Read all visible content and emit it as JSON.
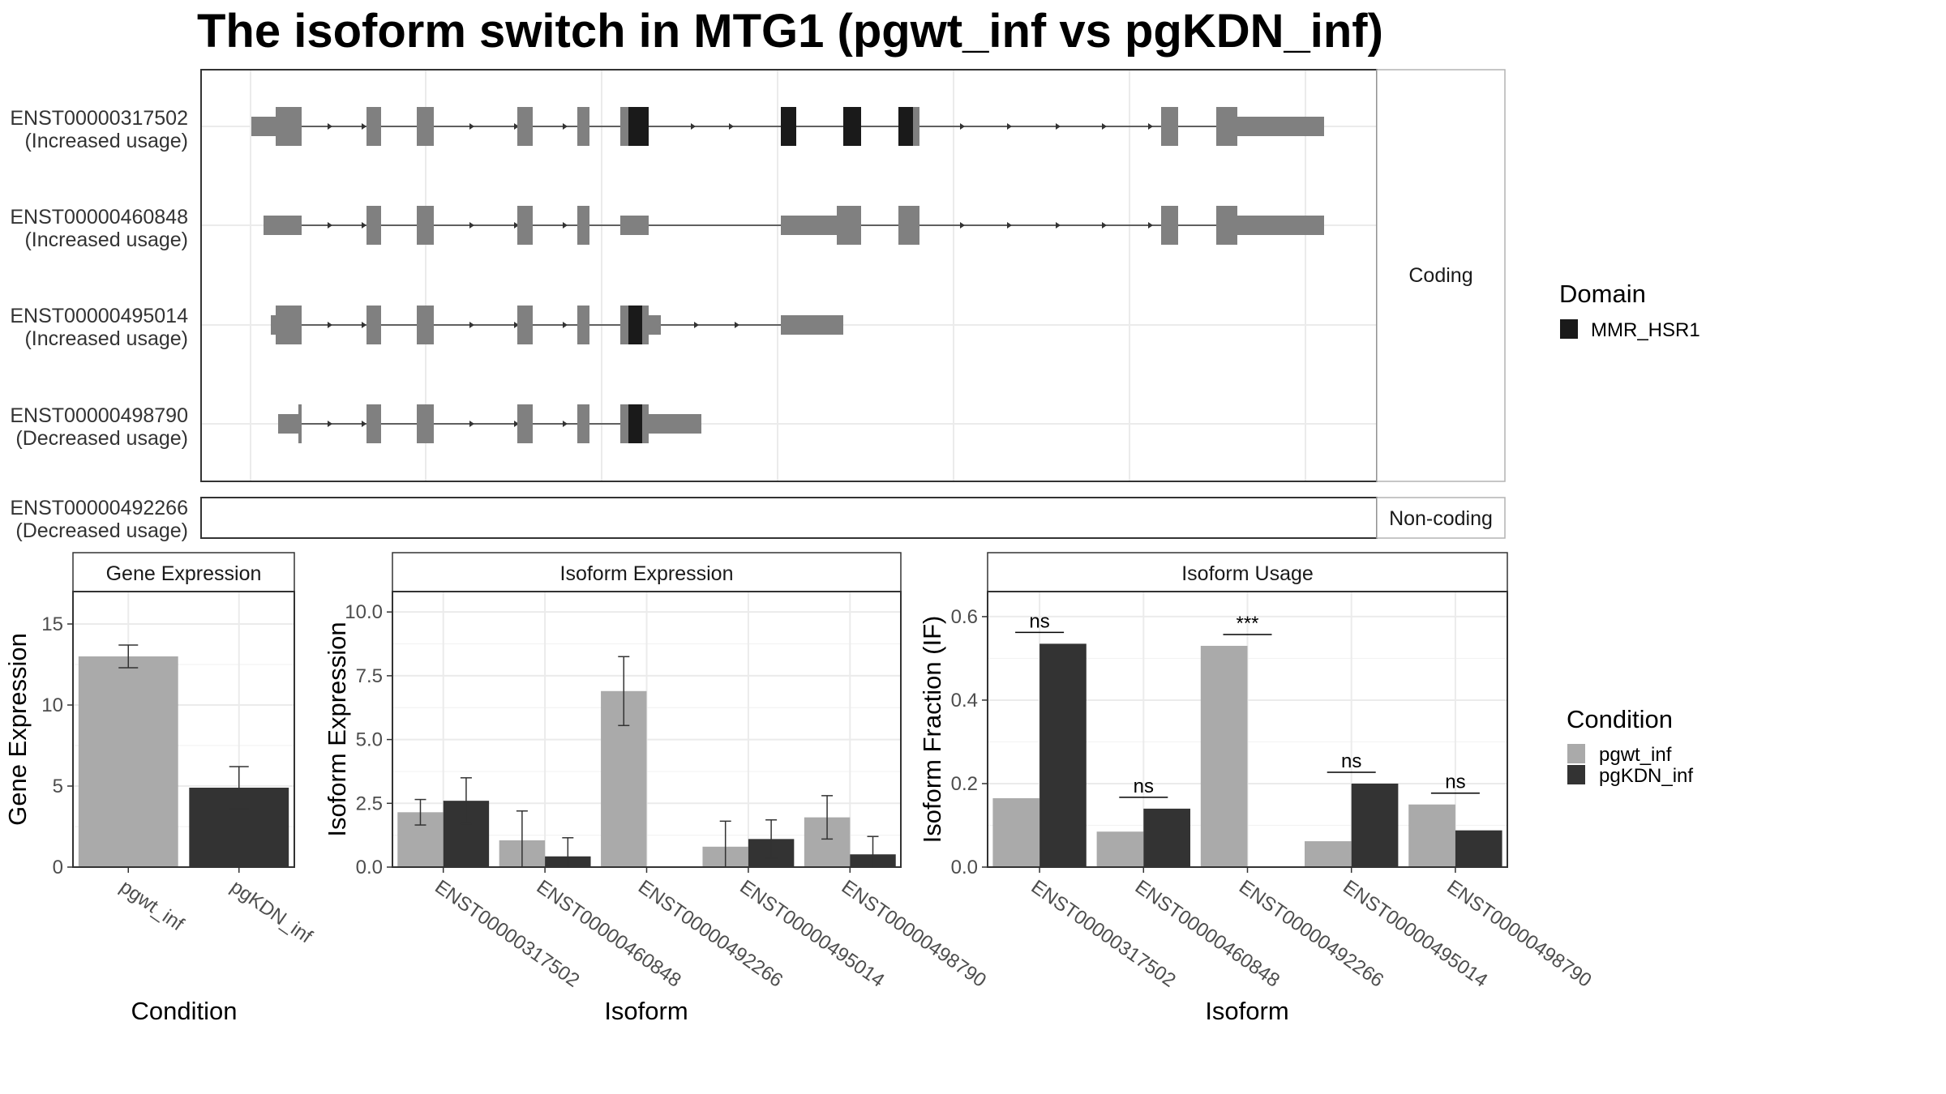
{
  "title": "The isoform switch in MTG1 (pgwt_inf vs pgKDN_inf)",
  "colors": {
    "exon": "#808080",
    "domain": "#1a1a1a",
    "cond1": "#aaaaaa",
    "cond2": "#333333",
    "grid": "#ebebeb",
    "frame": "#333333"
  },
  "structure": {
    "coding_label": "Coding",
    "noncoding_label": "Non-coding",
    "coding_transcripts": [
      {
        "id": "ENST00000317502",
        "usage": "(Increased usage)"
      },
      {
        "id": "ENST00000460848",
        "usage": "(Increased usage)"
      },
      {
        "id": "ENST00000495014",
        "usage": "(Increased usage)"
      },
      {
        "id": "ENST00000498790",
        "usage": "(Decreased usage)"
      }
    ],
    "noncoding_transcripts": [
      {
        "id": "ENST00000492266",
        "usage": "(Decreased usage)"
      }
    ]
  },
  "legend_domain": {
    "title": "Domain",
    "items": [
      "MMR_HSR1"
    ]
  },
  "legend_condition": {
    "title": "Condition",
    "items": [
      "pgwt_inf",
      "pgKDN_inf"
    ]
  },
  "chart_data": [
    {
      "type": "bar",
      "title": "Gene Expression",
      "xlabel": "Condition",
      "ylabel": "Gene Expression",
      "categories": [
        "pgwt_inf",
        "pgKDN_inf"
      ],
      "values": [
        13.0,
        4.9
      ],
      "errors": [
        [
          12.3,
          13.7
        ],
        [
          3.6,
          6.2
        ]
      ],
      "yticks": [
        "0",
        "5",
        "10",
        "15"
      ],
      "ylim": [
        0,
        17
      ]
    },
    {
      "type": "bar",
      "title": "Isoform Expression",
      "xlabel": "Isoform",
      "ylabel": "Isoform Expression",
      "categories": [
        "ENST00000317502",
        "ENST00000460848",
        "ENST00000492266",
        "ENST00000495014",
        "ENST00000498790"
      ],
      "series": [
        {
          "name": "pgwt_inf",
          "values": [
            2.15,
            1.05,
            6.9,
            0.8,
            1.95
          ],
          "errors": [
            [
              1.65,
              2.65
            ],
            [
              0.0,
              2.2
            ],
            [
              5.55,
              8.25
            ],
            [
              0.0,
              1.8
            ],
            [
              1.1,
              2.8
            ]
          ]
        },
        {
          "name": "pgKDN_inf",
          "values": [
            2.6,
            0.42,
            0.0,
            1.1,
            0.5
          ],
          "errors": [
            [
              1.7,
              3.5
            ],
            [
              0.0,
              1.15
            ],
            [
              0.0,
              0.0
            ],
            [
              0.35,
              1.85
            ],
            [
              0.0,
              1.2
            ]
          ]
        }
      ],
      "yticks": [
        "0.0",
        "2.5",
        "5.0",
        "7.5",
        "10.0"
      ],
      "ylim": [
        0,
        10.8
      ]
    },
    {
      "type": "bar",
      "title": "Isoform Usage",
      "xlabel": "Isoform",
      "ylabel": "Isoform Fraction (IF)",
      "categories": [
        "ENST00000317502",
        "ENST00000460848",
        "ENST00000492266",
        "ENST00000495014",
        "ENST00000498790"
      ],
      "series": [
        {
          "name": "pgwt_inf",
          "values": [
            0.165,
            0.085,
            0.53,
            0.062,
            0.15
          ]
        },
        {
          "name": "pgKDN_inf",
          "values": [
            0.535,
            0.14,
            0.0,
            0.2,
            0.088
          ]
        }
      ],
      "significance": [
        "ns",
        "ns",
        "***",
        "ns",
        "ns"
      ],
      "yticks": [
        "0.0",
        "0.2",
        "0.4",
        "0.6"
      ],
      "ylim": [
        0,
        0.66
      ]
    }
  ]
}
